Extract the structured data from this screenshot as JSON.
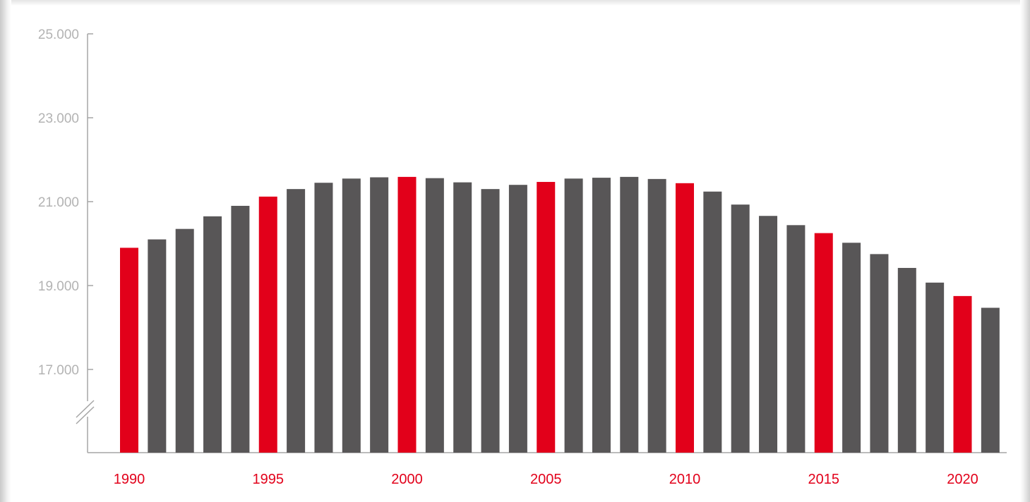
{
  "chart_data": {
    "type": "bar",
    "title": "",
    "xlabel": "",
    "ylabel": "",
    "ylim": [
      15000,
      25000
    ],
    "axis_break": true,
    "y_ticks": [
      17000,
      19000,
      21000,
      23000,
      25000
    ],
    "y_tick_labels": [
      "17.000",
      "19.000",
      "21.000",
      "23.000",
      "25.000"
    ],
    "x_tick_labels": [
      "1990",
      "1995",
      "2000",
      "2005",
      "2010",
      "2015",
      "2020"
    ],
    "categories": [
      1990,
      1991,
      1992,
      1993,
      1994,
      1995,
      1996,
      1997,
      1998,
      1999,
      2000,
      2001,
      2002,
      2003,
      2004,
      2005,
      2006,
      2007,
      2008,
      2009,
      2010,
      2011,
      2012,
      2013,
      2014,
      2015,
      2016,
      2017,
      2018,
      2019,
      2020,
      2021
    ],
    "values": [
      19900,
      20100,
      20350,
      20650,
      20900,
      21120,
      21300,
      21450,
      21550,
      21580,
      21590,
      21560,
      21460,
      21300,
      21400,
      21470,
      21550,
      21570,
      21590,
      21540,
      21440,
      21240,
      20930,
      20660,
      20440,
      20250,
      20020,
      19750,
      19420,
      19070,
      18750,
      18470
    ],
    "grid": false,
    "legend": "none",
    "colors": {
      "highlight": "#e2001a",
      "default": "#585657",
      "axis": "#a6a6a6",
      "tick_text": "#b3b3b3",
      "year_text": "#e2001a"
    }
  }
}
